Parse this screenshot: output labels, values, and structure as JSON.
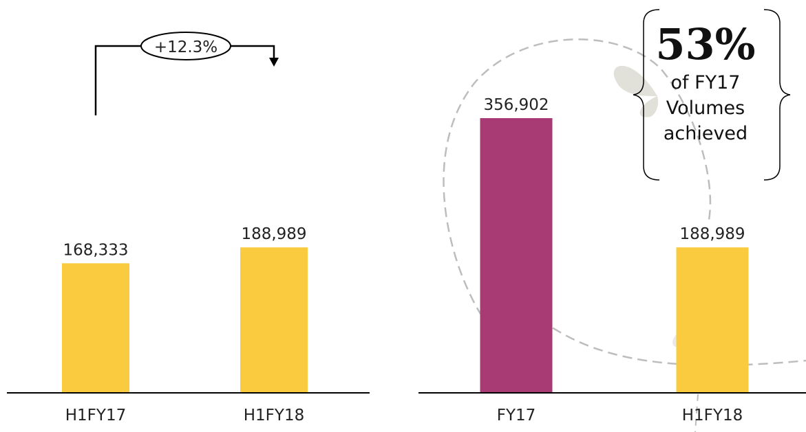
{
  "colors": {
    "bar_yellow": "#FACB3F",
    "bar_magenta": "#A83B74",
    "axis": "#000000",
    "decoration_grey": "#BDBDBD"
  },
  "chart_data": [
    {
      "type": "bar",
      "categories": [
        "H1FY17",
        "H1FY18"
      ],
      "values": [
        168333,
        188989
      ],
      "data_labels": [
        "168,333",
        "188,989"
      ],
      "bar_colors": [
        "#FACB3F",
        "#FACB3F"
      ],
      "title": "",
      "xlabel": "",
      "ylabel": "",
      "ylim": [
        0,
        400000
      ],
      "grid": false,
      "annotation": {
        "text": "+12.3%",
        "from_category": "H1FY17",
        "to_category": "H1FY18"
      }
    },
    {
      "type": "bar",
      "categories": [
        "FY17",
        "H1FY18"
      ],
      "values": [
        356902,
        188989
      ],
      "data_labels": [
        "356,902",
        "188,989"
      ],
      "bar_colors": [
        "#A83B74",
        "#FACB3F"
      ],
      "title": "",
      "xlabel": "",
      "ylabel": "",
      "ylim": [
        0,
        400000
      ],
      "grid": false
    }
  ],
  "callout": {
    "headline": "53%",
    "line1": "of  FY17",
    "line2": "Volumes",
    "line3": "achieved"
  }
}
